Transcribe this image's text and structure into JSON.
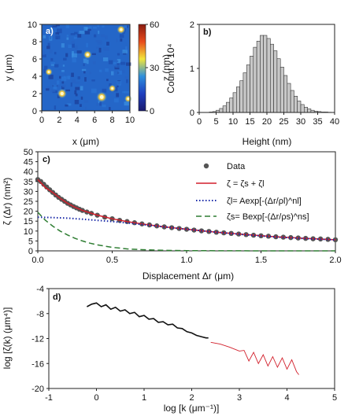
{
  "panels": {
    "a": {
      "label": "a)",
      "xlabel": "x (μm)",
      "ylabel": "y (μm)",
      "xticks": [
        "0",
        "2",
        "4",
        "6",
        "8",
        "10"
      ],
      "yticks": [
        "0",
        "2",
        "4",
        "6",
        "8",
        "10"
      ],
      "colorbar": {
        "label": "z (nm)",
        "ticks": [
          "0",
          "30",
          "60"
        ],
        "colors": [
          "#1a1a6e",
          "#1f3fbf",
          "#2f8fdc",
          "#f2e63a",
          "#e84b1c",
          "#8a1c10"
        ]
      }
    },
    "b": {
      "label": "b)",
      "xlabel": "Height (nm)",
      "ylabel": "Count x 10⁴",
      "xticks": [
        "0",
        "5",
        "10",
        "15",
        "20",
        "25",
        "30",
        "35",
        "40"
      ],
      "yticks": [
        "0",
        "1",
        "2"
      ]
    },
    "c": {
      "label": "c)",
      "xlabel": "Displacement Δr (μm)",
      "ylabel": "ζ (Δr) (nm²)",
      "xticks": [
        "0.0",
        "0.5",
        "1.0",
        "1.5",
        "2.0"
      ],
      "yticks": [
        "0",
        "5",
        "10",
        "15",
        "20",
        "25",
        "30",
        "35",
        "40",
        "45",
        "50"
      ],
      "legend": [
        "Data",
        "ζ = ζs + ζl",
        "ζl= Aexp[-(Δr/ρl)^nl]",
        "ζs= Bexp[-(Δr/ρs)^ns]"
      ]
    },
    "d": {
      "label": "d)",
      "xlabel": "log [k (μm⁻¹)]",
      "ylabel": "log [ζ(k) (μm⁴)]",
      "xticks": [
        "-1",
        "0",
        "1",
        "2",
        "3",
        "4",
        "5"
      ],
      "yticks": [
        "-20",
        "-16",
        "-12",
        "-8",
        "-4"
      ]
    }
  },
  "chart_data": [
    {
      "type": "heatmap",
      "xlim": [
        0,
        10
      ],
      "ylim": [
        0,
        10
      ],
      "zlim": [
        0,
        60
      ],
      "colormap": "blue-to-red",
      "features": [
        {
          "x": 6.8,
          "y": 1.6,
          "z": 55
        },
        {
          "x": 2.3,
          "y": 2.0,
          "z": 50
        },
        {
          "x": 5.2,
          "y": 6.5,
          "z": 45
        },
        {
          "x": 9.0,
          "y": 9.4,
          "z": 45
        },
        {
          "x": 8.0,
          "y": 2.6,
          "z": 40
        },
        {
          "x": 0.8,
          "y": 4.5,
          "z": 40
        },
        {
          "x": 9.8,
          "y": 1.4,
          "z": 40
        }
      ]
    },
    {
      "type": "bar",
      "xlim": [
        0,
        40
      ],
      "ylim": [
        0,
        2
      ],
      "bin_width": 1,
      "x": [
        3,
        4,
        5,
        6,
        7,
        8,
        9,
        10,
        11,
        12,
        13,
        14,
        15,
        16,
        17,
        18,
        19,
        20,
        21,
        22,
        23,
        24,
        25,
        26,
        27,
        28,
        29,
        30,
        31,
        32,
        33,
        34,
        35,
        36,
        37,
        38
      ],
      "values": [
        0.01,
        0.02,
        0.05,
        0.09,
        0.15,
        0.23,
        0.33,
        0.45,
        0.58,
        0.72,
        0.9,
        1.08,
        1.28,
        1.48,
        1.62,
        1.75,
        1.75,
        1.68,
        1.55,
        1.4,
        1.22,
        1.03,
        0.84,
        0.66,
        0.5,
        0.37,
        0.26,
        0.18,
        0.12,
        0.08,
        0.05,
        0.03,
        0.02,
        0.01,
        0.01,
        0.005
      ]
    },
    {
      "type": "scatter",
      "xlim": [
        0,
        2
      ],
      "ylim": [
        0,
        50
      ],
      "series": [
        {
          "name": "Data",
          "marker": "circle",
          "color": "#555555",
          "x": [
            0.0,
            0.02,
            0.04,
            0.06,
            0.08,
            0.1,
            0.12,
            0.14,
            0.16,
            0.18,
            0.2,
            0.22,
            0.24,
            0.26,
            0.28,
            0.3,
            0.33,
            0.36,
            0.4,
            0.45,
            0.5,
            0.55,
            0.6,
            0.65,
            0.7,
            0.75,
            0.8,
            0.85,
            0.9,
            0.95,
            1.0,
            1.05,
            1.1,
            1.15,
            1.2,
            1.25,
            1.3,
            1.35,
            1.4,
            1.45,
            1.5,
            1.55,
            1.6,
            1.65,
            1.7,
            1.75,
            1.8,
            1.85,
            1.9,
            1.95,
            2.0
          ],
          "y": [
            36.0,
            35.0,
            33.6,
            32.2,
            30.8,
            29.5,
            28.2,
            27.0,
            26.0,
            25.0,
            24.0,
            23.2,
            22.4,
            21.7,
            21.0,
            20.4,
            19.6,
            18.9,
            18.0,
            17.0,
            16.2,
            15.4,
            14.8,
            14.2,
            13.6,
            13.1,
            12.6,
            12.1,
            11.7,
            11.3,
            10.9,
            10.5,
            10.1,
            9.8,
            9.4,
            9.1,
            8.8,
            8.5,
            8.2,
            7.9,
            7.6,
            7.4,
            7.1,
            6.9,
            6.7,
            6.5,
            6.3,
            6.1,
            6.0,
            5.8,
            5.6
          ]
        },
        {
          "name": "ζ = ζs + ζl",
          "line": "solid",
          "color": "#d21f2b",
          "x": [
            0.0,
            0.05,
            0.1,
            0.15,
            0.2,
            0.25,
            0.3,
            0.4,
            0.5,
            0.6,
            0.7,
            0.8,
            0.9,
            1.0,
            1.2,
            1.4,
            1.6,
            1.8,
            2.0
          ],
          "y": [
            36.0,
            32.0,
            29.5,
            26.5,
            24.0,
            22.0,
            20.4,
            18.0,
            16.2,
            14.8,
            13.6,
            12.6,
            11.7,
            10.9,
            9.4,
            8.2,
            7.1,
            6.3,
            5.6
          ]
        },
        {
          "name": "ζl= Aexp[-(Δr/ρl)^nl]",
          "line": "dotted",
          "color": "#1a2aa8",
          "x": [
            0.0,
            0.1,
            0.2,
            0.3,
            0.4,
            0.5,
            0.6,
            0.7,
            0.8,
            0.9,
            1.0,
            1.2,
            1.4,
            1.6,
            1.8,
            2.0
          ],
          "y": [
            17.0,
            16.8,
            16.5,
            16.0,
            15.4,
            14.8,
            14.1,
            13.3,
            12.5,
            11.7,
            10.9,
            9.4,
            8.1,
            7.0,
            6.2,
            5.5
          ]
        },
        {
          "name": "ζs= Bexp[-(Δr/ρs)^ns]",
          "line": "dashed",
          "color": "#2e7d32",
          "x": [
            0.0,
            0.05,
            0.1,
            0.15,
            0.2,
            0.25,
            0.3,
            0.35,
            0.4,
            0.5,
            0.6,
            0.7,
            0.8,
            0.9,
            1.0,
            1.5,
            2.0
          ],
          "y": [
            19.5,
            15.5,
            12.5,
            10.0,
            8.0,
            6.3,
            5.0,
            3.9,
            3.0,
            1.8,
            1.0,
            0.6,
            0.35,
            0.2,
            0.1,
            0.0,
            0.0
          ]
        }
      ]
    },
    {
      "type": "line",
      "xlim": [
        -1,
        5
      ],
      "ylim": [
        -20,
        -4
      ],
      "series": [
        {
          "color": "#111111",
          "x": [
            -0.2,
            -0.1,
            0.0,
            0.1,
            0.2,
            0.3,
            0.4,
            0.5,
            0.6,
            0.7,
            0.8,
            0.9,
            1.0,
            1.1,
            1.2,
            1.3,
            1.4,
            1.5,
            1.6,
            1.7,
            1.8,
            1.9,
            2.0,
            2.1,
            2.2,
            2.3,
            2.35
          ],
          "y": [
            -6.9,
            -6.5,
            -6.3,
            -6.9,
            -6.6,
            -7.3,
            -7.0,
            -7.6,
            -7.4,
            -8.0,
            -7.8,
            -8.5,
            -8.3,
            -8.9,
            -8.8,
            -9.4,
            -9.3,
            -9.8,
            -9.7,
            -10.3,
            -10.4,
            -10.9,
            -11.1,
            -11.5,
            -11.7,
            -11.9,
            -11.9
          ]
        },
        {
          "color": "#d21f2b",
          "x": [
            2.4,
            2.6,
            2.8,
            3.0,
            3.1,
            3.2,
            3.3,
            3.4,
            3.5,
            3.6,
            3.7,
            3.8,
            3.9,
            4.0,
            4.1,
            4.2,
            4.25
          ],
          "y": [
            -12.6,
            -12.9,
            -13.4,
            -14.0,
            -13.9,
            -15.6,
            -14.2,
            -16.0,
            -14.6,
            -16.4,
            -14.9,
            -16.6,
            -15.1,
            -16.9,
            -15.4,
            -17.3,
            -17.8
          ]
        }
      ]
    }
  ]
}
